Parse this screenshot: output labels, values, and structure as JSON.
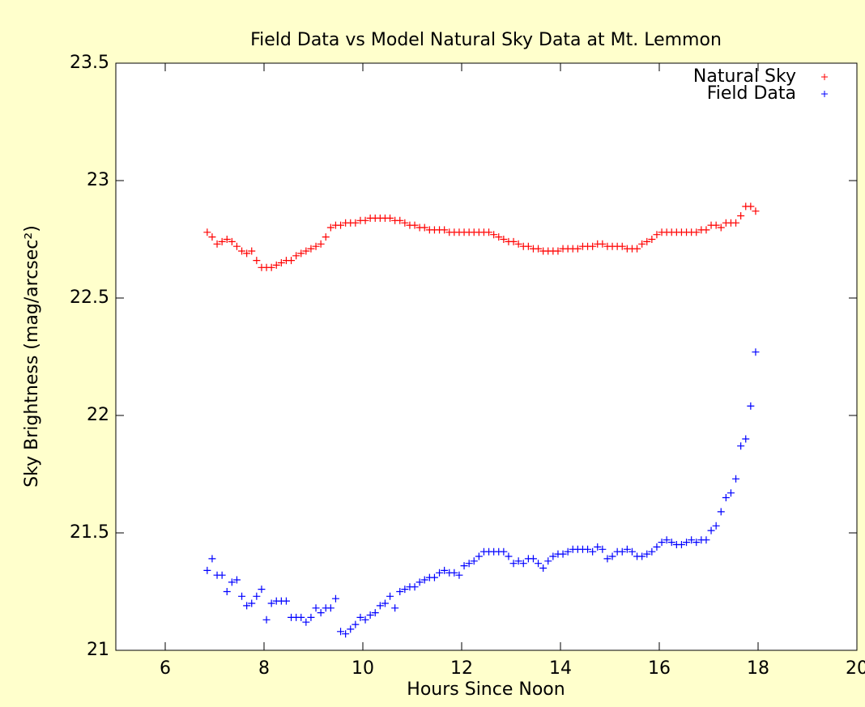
{
  "chart_data": {
    "type": "scatter",
    "title": "Field Data vs Model Natural Sky Data at Mt. Lemmon",
    "x_label": "Hours Since Noon",
    "y_label": "Sky Brightness (mag/arcsec²)",
    "xlim": [
      5,
      20
    ],
    "ylim": [
      21,
      23.5
    ],
    "xticks": [
      6,
      8,
      10,
      12,
      14,
      16,
      18,
      20
    ],
    "yticks": [
      21,
      21.5,
      22,
      22.5,
      23,
      23.5
    ],
    "legend": "top-right",
    "x": [
      6.85,
      6.95,
      7.05,
      7.15,
      7.25,
      7.35,
      7.45,
      7.55,
      7.65,
      7.75,
      7.85,
      7.95,
      8.05,
      8.15,
      8.25,
      8.35,
      8.45,
      8.55,
      8.65,
      8.75,
      8.85,
      8.95,
      9.05,
      9.15,
      9.25,
      9.35,
      9.45,
      9.55,
      9.65,
      9.75,
      9.85,
      9.95,
      10.05,
      10.15,
      10.25,
      10.35,
      10.45,
      10.55,
      10.65,
      10.75,
      10.85,
      10.95,
      11.05,
      11.15,
      11.25,
      11.35,
      11.45,
      11.55,
      11.65,
      11.75,
      11.85,
      11.95,
      12.05,
      12.15,
      12.25,
      12.35,
      12.45,
      12.55,
      12.65,
      12.75,
      12.85,
      12.95,
      13.05,
      13.15,
      13.25,
      13.35,
      13.45,
      13.55,
      13.65,
      13.75,
      13.85,
      13.95,
      14.05,
      14.15,
      14.25,
      14.35,
      14.45,
      14.55,
      14.65,
      14.75,
      14.85,
      14.95,
      15.05,
      15.15,
      15.25,
      15.35,
      15.45,
      15.55,
      15.65,
      15.75,
      15.85,
      15.95,
      16.05,
      16.15,
      16.25,
      16.35,
      16.45,
      16.55,
      16.65,
      16.75,
      16.85,
      16.95,
      17.05,
      17.15,
      17.25,
      17.35,
      17.45,
      17.55,
      17.65,
      17.75,
      17.85,
      17.95
    ],
    "series": [
      {
        "name": "Natural Sky",
        "color": "#ff0000",
        "values": [
          22.78,
          22.76,
          22.73,
          22.74,
          22.75,
          22.74,
          22.72,
          22.7,
          22.69,
          22.7,
          22.66,
          22.63,
          22.63,
          22.63,
          22.64,
          22.65,
          22.66,
          22.66,
          22.68,
          22.69,
          22.7,
          22.71,
          22.72,
          22.73,
          22.76,
          22.8,
          22.81,
          22.81,
          22.82,
          22.82,
          22.82,
          22.83,
          22.83,
          22.84,
          22.84,
          22.84,
          22.84,
          22.84,
          22.83,
          22.83,
          22.82,
          22.81,
          22.81,
          22.8,
          22.8,
          22.79,
          22.79,
          22.79,
          22.79,
          22.78,
          22.78,
          22.78,
          22.78,
          22.78,
          22.78,
          22.78,
          22.78,
          22.78,
          22.77,
          22.76,
          22.75,
          22.74,
          22.74,
          22.73,
          22.72,
          22.72,
          22.71,
          22.71,
          22.7,
          22.7,
          22.7,
          22.7,
          22.71,
          22.71,
          22.71,
          22.71,
          22.72,
          22.72,
          22.72,
          22.73,
          22.73,
          22.72,
          22.72,
          22.72,
          22.72,
          22.71,
          22.71,
          22.71,
          22.73,
          22.74,
          22.75,
          22.77,
          22.78,
          22.78,
          22.78,
          22.78,
          22.78,
          22.78,
          22.78,
          22.78,
          22.79,
          22.79,
          22.81,
          22.81,
          22.8,
          22.82,
          22.82,
          22.82,
          22.85,
          22.89,
          22.89,
          22.87
        ]
      },
      {
        "name": "Field Data",
        "color": "#0000ff",
        "values": [
          21.34,
          21.39,
          21.32,
          21.32,
          21.25,
          21.29,
          21.3,
          21.23,
          21.19,
          21.2,
          21.23,
          21.26,
          21.13,
          21.2,
          21.21,
          21.21,
          21.21,
          21.14,
          21.14,
          21.14,
          21.12,
          21.14,
          21.18,
          21.16,
          21.18,
          21.18,
          21.22,
          21.08,
          21.07,
          21.09,
          21.11,
          21.14,
          21.13,
          21.15,
          21.16,
          21.19,
          21.2,
          21.23,
          21.18,
          21.25,
          21.26,
          21.27,
          21.27,
          21.29,
          21.3,
          21.31,
          21.31,
          21.33,
          21.34,
          21.33,
          21.33,
          21.32,
          21.36,
          21.37,
          21.38,
          21.4,
          21.42,
          21.42,
          21.42,
          21.42,
          21.42,
          21.4,
          21.37,
          21.38,
          21.37,
          21.39,
          21.39,
          21.37,
          21.35,
          21.38,
          21.4,
          21.41,
          21.41,
          21.42,
          21.43,
          21.43,
          21.43,
          21.43,
          21.42,
          21.44,
          21.43,
          21.39,
          21.4,
          21.42,
          21.42,
          21.43,
          21.42,
          21.4,
          21.4,
          21.41,
          21.42,
          21.44,
          21.46,
          21.47,
          21.46,
          21.45,
          21.45,
          21.46,
          21.47,
          21.46,
          21.47,
          21.47,
          21.51,
          21.53,
          21.59,
          21.65,
          21.67,
          21.73,
          21.87,
          21.9,
          22.04,
          22.27
        ]
      }
    ]
  }
}
